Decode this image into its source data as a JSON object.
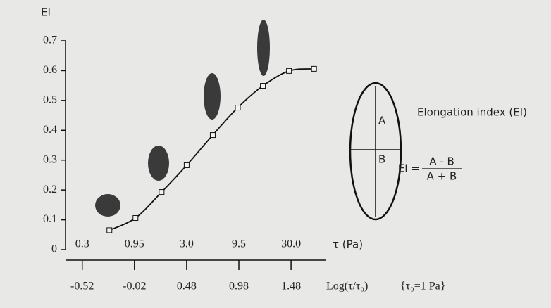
{
  "chart_data": {
    "type": "line",
    "y_label": "EI",
    "x_label": "τ (Pa)",
    "x2_label": "Log(τ/τ₀)",
    "x2_note": "{τ₀=1 Pa}",
    "x": [
      -0.26,
      -0.01,
      0.24,
      0.48,
      0.73,
      0.97,
      1.21,
      1.46,
      1.7
    ],
    "values": [
      0.065,
      0.106,
      0.193,
      0.283,
      0.384,
      0.476,
      0.549,
      0.599,
      0.606
    ],
    "color": "#111111",
    "xlim": [
      -0.68,
      1.81
    ],
    "xticks": [
      {
        "value": -0.52,
        "label": "0.3"
      },
      {
        "value": -0.02,
        "label": "0.95"
      },
      {
        "value": 0.48,
        "label": "3.0"
      },
      {
        "value": 0.98,
        "label": "9.5"
      },
      {
        "value": 1.48,
        "label": "30.0"
      }
    ],
    "x2ticks": [
      -0.52,
      -0.02,
      0.48,
      0.98,
      1.48
    ],
    "ylim": [
      0,
      0.7
    ],
    "yticks": [
      0,
      0.1,
      0.2,
      0.3,
      0.4,
      0.5,
      0.6,
      0.7
    ],
    "diagram": {
      "title": "Elongation index (EI)",
      "axis_a": "A",
      "axis_b": "B",
      "formula_left": "EI =",
      "numerator": "A - B",
      "denominator": "A + B"
    }
  }
}
